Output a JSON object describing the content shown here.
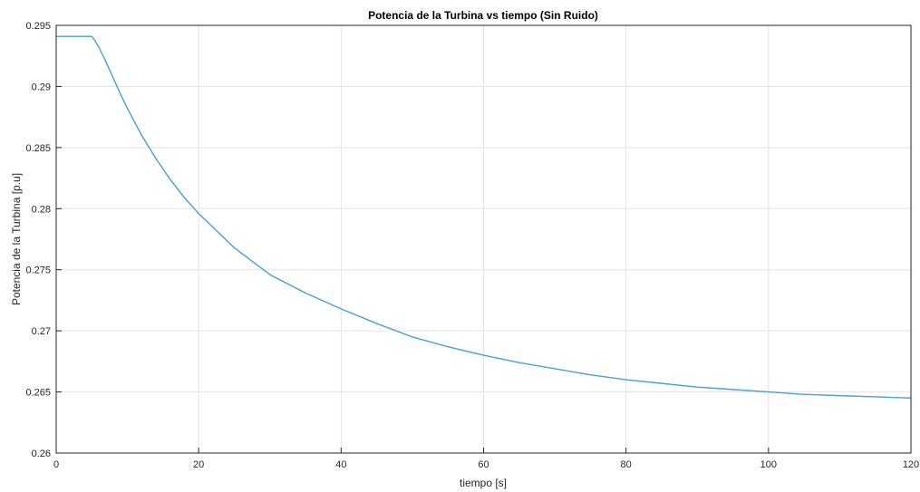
{
  "chart_data": {
    "type": "line",
    "title": "Potencia de la Turbina vs tiempo (Sin Ruido)",
    "xlabel": "tiempo [s]",
    "ylabel": "Potencia de la Turbina [p.u]",
    "xlim": [
      0,
      120
    ],
    "ylim": [
      0.26,
      0.295
    ],
    "xticks": [
      0,
      20,
      40,
      60,
      80,
      100,
      120
    ],
    "xtick_labels": [
      "0",
      "20",
      "40",
      "60",
      "80",
      "100",
      "120"
    ],
    "yticks": [
      0.26,
      0.265,
      0.27,
      0.275,
      0.28,
      0.285,
      0.29,
      0.295
    ],
    "ytick_labels": [
      "0.26",
      "0.265",
      "0.27",
      "0.275",
      "0.28",
      "0.285",
      "0.29",
      "0.295"
    ],
    "grid": true,
    "line_color": "#4a9fd4",
    "series": [
      {
        "x": [
          0,
          5,
          5.5,
          6,
          6.5,
          7,
          8,
          9,
          10,
          12,
          14,
          16,
          18,
          20,
          25,
          30,
          35,
          40,
          45,
          50,
          55,
          60,
          65,
          70,
          75,
          80,
          85,
          90,
          95,
          100,
          105,
          110,
          115,
          120
        ],
        "values": [
          0.2941,
          0.2941,
          0.2937,
          0.2932,
          0.2926,
          0.292,
          0.2907,
          0.2894,
          0.2882,
          0.286,
          0.2841,
          0.2824,
          0.2809,
          0.2796,
          0.2768,
          0.2746,
          0.2731,
          0.2718,
          0.2706,
          0.2695,
          0.2687,
          0.268,
          0.2674,
          0.2669,
          0.2664,
          0.266,
          0.2657,
          0.2654,
          0.2652,
          0.265,
          0.2648,
          0.2647,
          0.2646,
          0.2645
        ]
      }
    ]
  }
}
